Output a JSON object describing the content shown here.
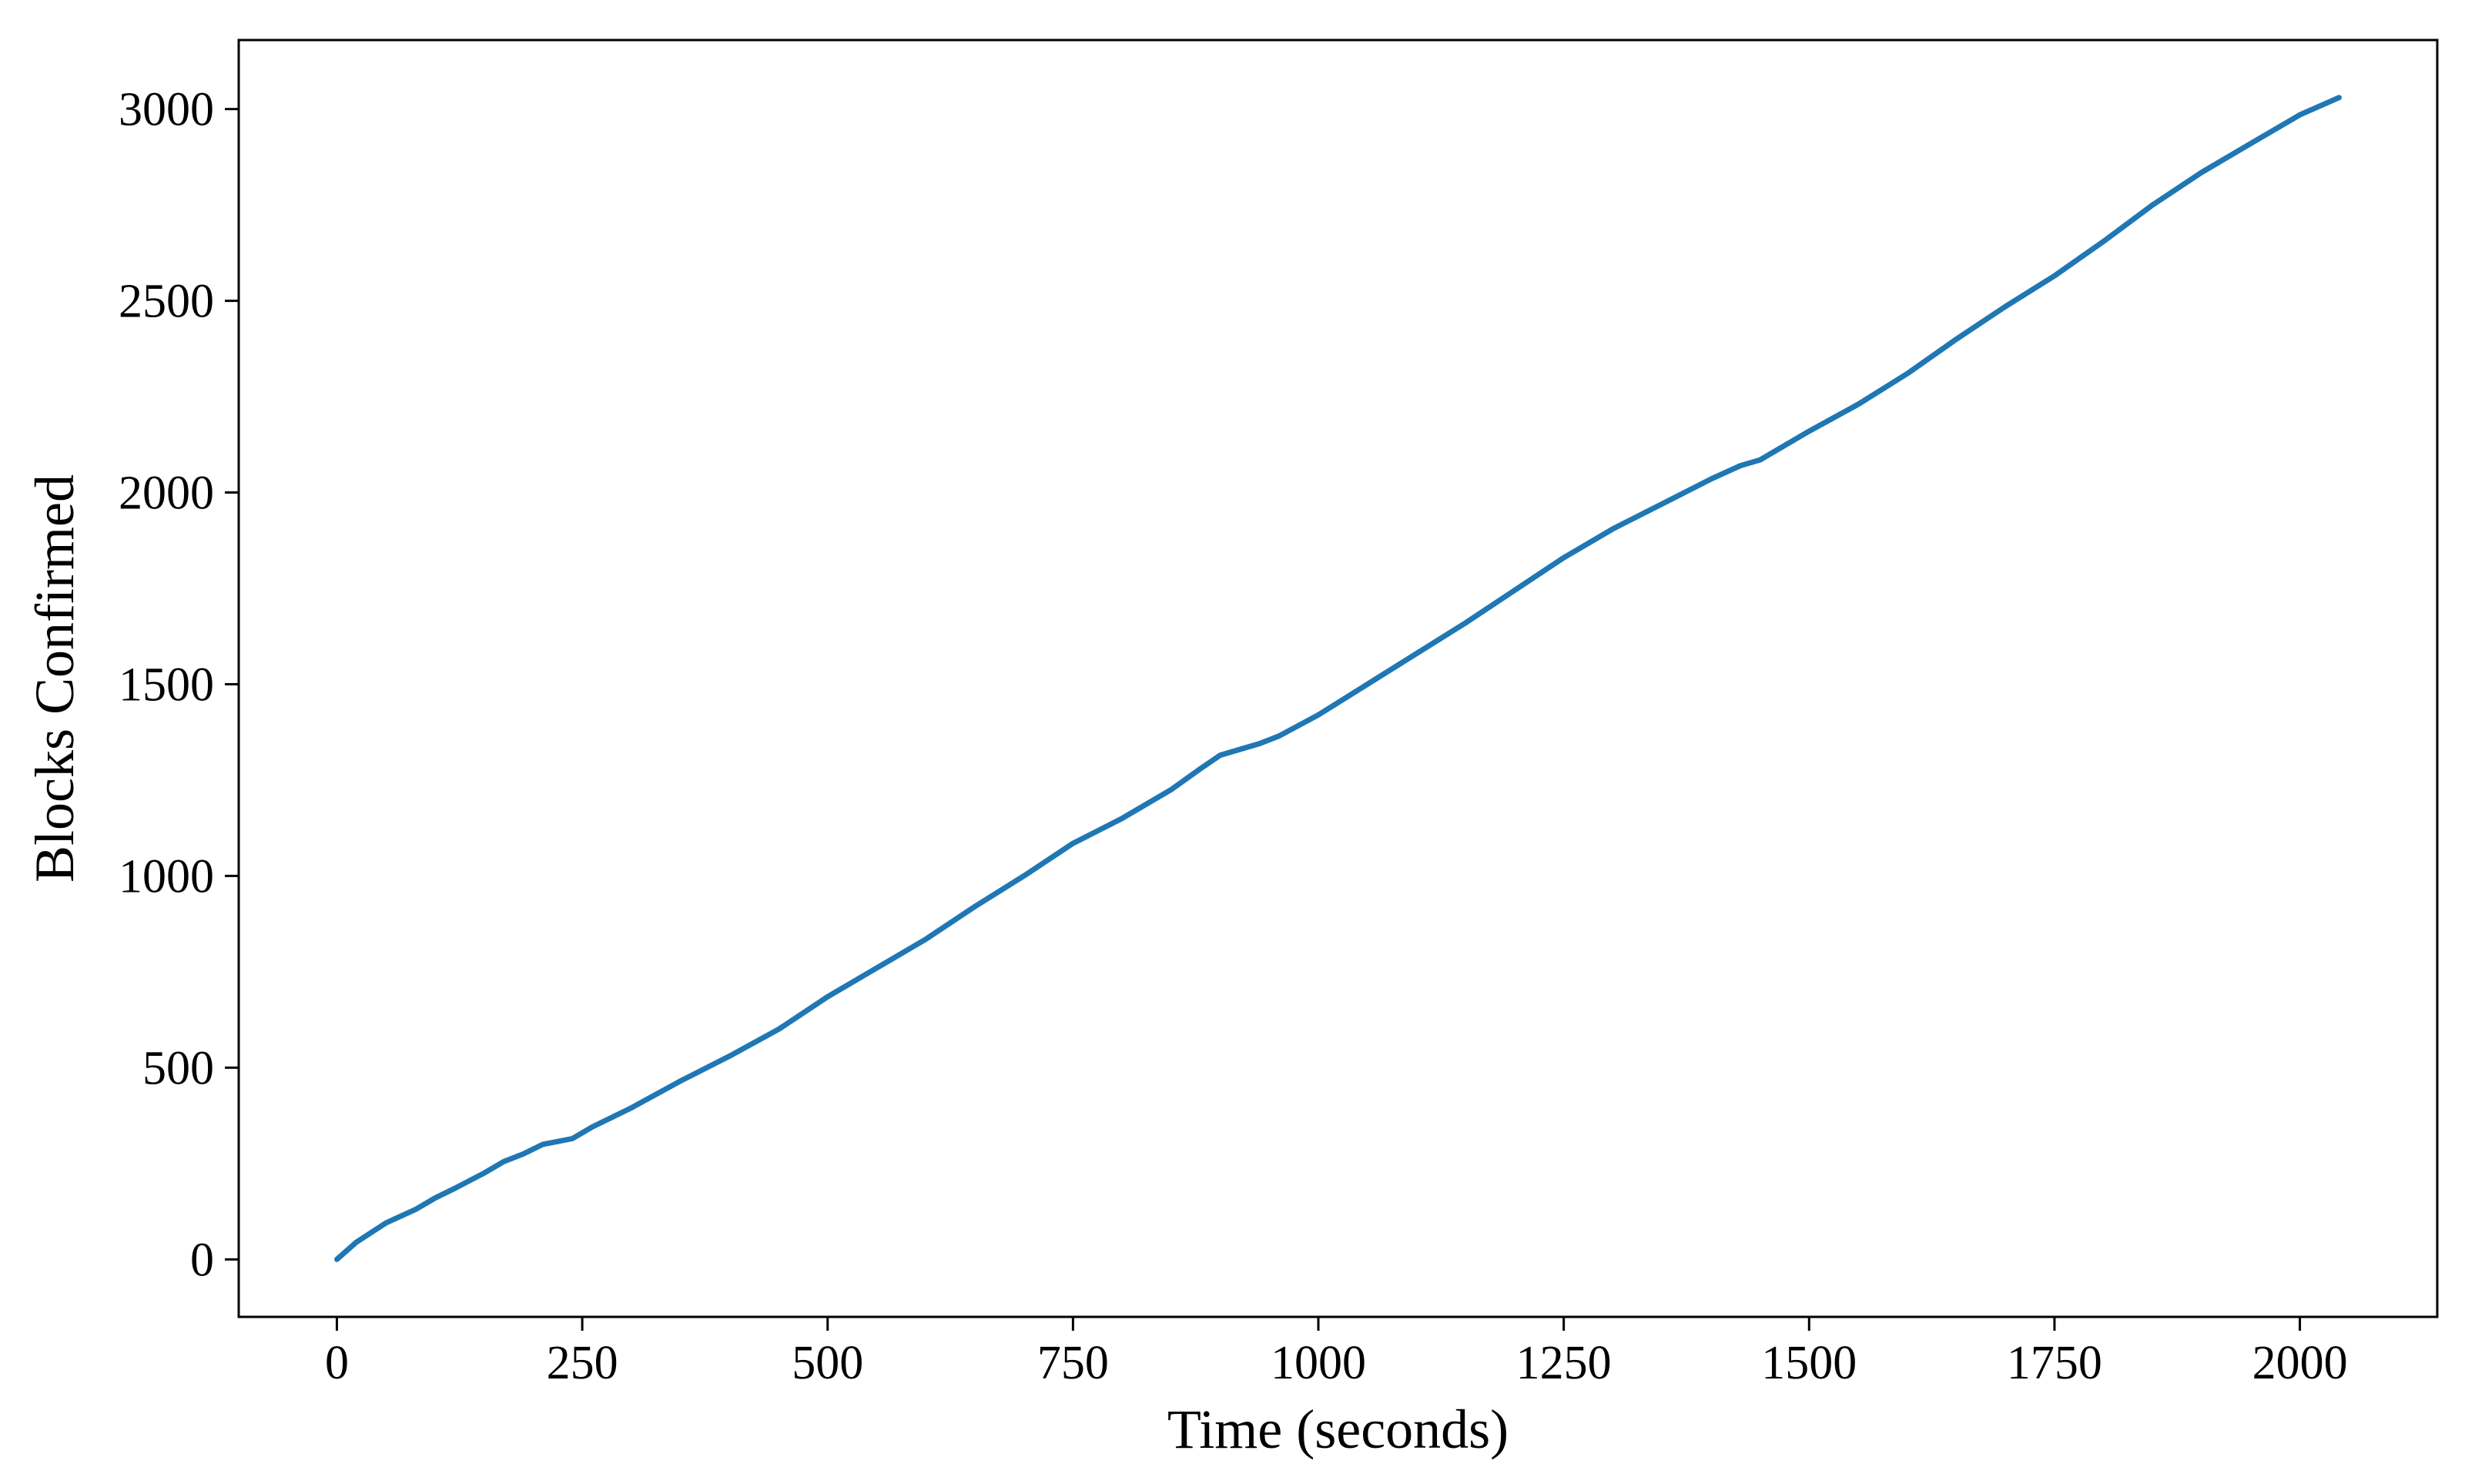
{
  "chart_data": {
    "type": "line",
    "title": "",
    "xlabel": "Time (seconds)",
    "ylabel": "Blocks Confirmed",
    "xlim": [
      -100,
      2140
    ],
    "ylim": [
      -150,
      3180
    ],
    "xticks": [
      0,
      250,
      500,
      750,
      1000,
      1250,
      1500,
      1750,
      2000
    ],
    "yticks": [
      0,
      500,
      1000,
      1500,
      2000,
      2500,
      3000
    ],
    "grid": false,
    "legend": "none",
    "line_color": "#1f77b4",
    "series": [
      {
        "x": [
          0,
          20,
          50,
          80,
          100,
          120,
          150,
          170,
          190,
          210,
          240,
          260,
          300,
          350,
          400,
          450,
          500,
          550,
          600,
          650,
          700,
          750,
          800,
          850,
          880,
          900,
          920,
          940,
          960,
          1000,
          1050,
          1100,
          1150,
          1200,
          1250,
          1300,
          1350,
          1400,
          1430,
          1450,
          1500,
          1550,
          1600,
          1650,
          1700,
          1750,
          1800,
          1850,
          1900,
          1950,
          2000,
          2040
        ],
        "y": [
          0,
          45,
          95,
          130,
          160,
          185,
          225,
          255,
          275,
          300,
          315,
          345,
          395,
          465,
          530,
          600,
          685,
          760,
          835,
          920,
          1000,
          1085,
          1150,
          1225,
          1280,
          1315,
          1330,
          1345,
          1365,
          1420,
          1500,
          1580,
          1660,
          1745,
          1830,
          1905,
          1970,
          2035,
          2070,
          2085,
          2160,
          2230,
          2310,
          2400,
          2485,
          2565,
          2655,
          2750,
          2835,
          2910,
          2985,
          3030
        ]
      }
    ]
  }
}
